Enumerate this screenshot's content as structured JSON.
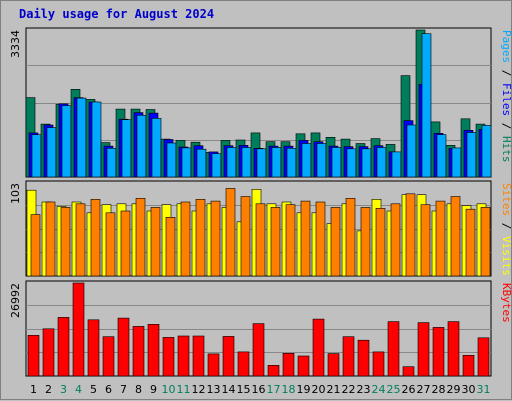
{
  "chart_data": {
    "type": "bar",
    "title": "Daily usage for August 2024",
    "categories": [
      "1",
      "2",
      "3",
      "4",
      "5",
      "6",
      "7",
      "8",
      "9",
      "10",
      "11",
      "12",
      "13",
      "14",
      "15",
      "16",
      "17",
      "18",
      "19",
      "20",
      "21",
      "22",
      "23",
      "24",
      "25",
      "26",
      "27",
      "28",
      "29",
      "30",
      "31"
    ],
    "weekend_days": [
      "3",
      "4",
      "10",
      "11",
      "17",
      "18",
      "24",
      "25",
      "31"
    ],
    "panels": [
      {
        "max_label": "3334",
        "ylim": [
          0,
          3334
        ],
        "series": [
          {
            "name": "Hits",
            "color": "#007e5c",
            "values": [
              1800,
              1200,
              1650,
              1990,
              1760,
              780,
              1540,
              1540,
              1530,
              860,
              830,
              790,
              560,
              830,
              840,
              1000,
              800,
              800,
              980,
              1000,
              900,
              860,
              760,
              870,
              740,
              2300,
              3334,
              1250,
              720,
              1320,
              1200
            ]
          },
          {
            "name": "Files",
            "color": "#0000ff",
            "values": [
              1000,
              1180,
              1660,
              1800,
              1700,
              700,
              1310,
              1460,
              1450,
              850,
              680,
              710,
              570,
              710,
              720,
              650,
              700,
              700,
              830,
              800,
              700,
              690,
              690,
              710,
              570,
              1280,
              2100,
              990,
              650,
              1060,
              1080
            ]
          },
          {
            "name": "Pages",
            "color": "#00aaff",
            "values": [
              960,
              1120,
              1620,
              1790,
              1700,
              650,
              1300,
              1400,
              1330,
              770,
              660,
              630,
              530,
              670,
              670,
              640,
              670,
              650,
              760,
              760,
              670,
              640,
              640,
              670,
              570,
              1180,
              3250,
              960,
              660,
              1010,
              1170
            ]
          }
        ]
      },
      {
        "max_label": "103",
        "ylim": [
          0,
          103
        ],
        "series": [
          {
            "name": "Visits",
            "color": "#ffff00",
            "values": [
              95,
              82,
              77,
              82,
              70,
              79,
              80,
              80,
              72,
              79,
              80,
              72,
              80,
              76,
              60,
              96,
              80,
              82,
              70,
              70,
              58,
              80,
              50,
              85,
              72,
              90,
              90,
              72,
              80,
              78,
              80
            ]
          },
          {
            "name": "Sites",
            "color": "#ff8000",
            "values": [
              68,
              82,
              76,
              80,
              85,
              70,
              72,
              86,
              76,
              65,
              82,
              85,
              83,
              97,
              88,
              80,
              76,
              79,
              83,
              82,
              76,
              86,
              76,
              75,
              80,
              91,
              79,
              83,
              88,
              74,
              76
            ]
          }
        ]
      },
      {
        "max_label": "26992",
        "ylim": [
          0,
          26992
        ],
        "series": [
          {
            "name": "KBytes",
            "color": "#ff0000",
            "values": [
              11800,
              13700,
              17000,
              26992,
              16300,
              11400,
              16800,
              14400,
              15000,
              11200,
              11600,
              11600,
              6400,
              11500,
              7000,
              15200,
              3100,
              6600,
              5800,
              16500,
              6500,
              11400,
              10400,
              7000,
              15800,
              2700,
              15500,
              14100,
              15800,
              6000,
              11100
            ]
          }
        ]
      }
    ],
    "grid": true
  }
}
